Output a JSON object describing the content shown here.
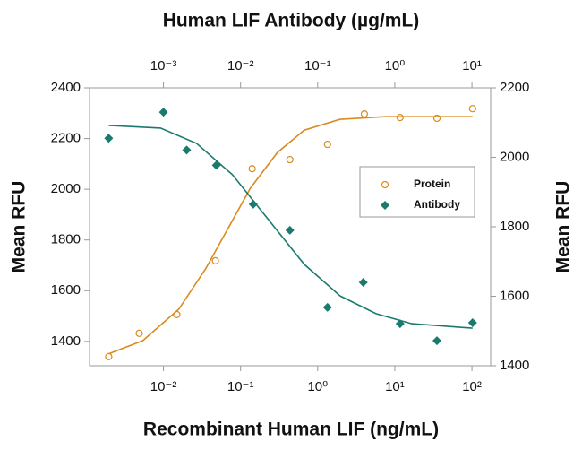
{
  "chart_data": {
    "type": "scatter",
    "title": "Human LIF Antibody (µg/mL)",
    "xlabel": "Recombinant Human LIF (ng/mL)",
    "ylabel": "Mean RFU",
    "y2label": "Mean RFU",
    "xscale": "log",
    "xlim": [
      0.0011,
      175
    ],
    "x2lim": [
      0.00011,
      17.5
    ],
    "ylim": [
      1304,
      2400
    ],
    "y2lim": [
      1400,
      2200
    ],
    "xticks": [
      {
        "value": 0.01,
        "label": "10⁻²"
      },
      {
        "value": 0.1,
        "label": "10⁻¹"
      },
      {
        "value": 1,
        "label": "10⁰"
      },
      {
        "value": 10,
        "label": "10¹"
      },
      {
        "value": 100,
        "label": "10²"
      }
    ],
    "x2ticks": [
      {
        "value": 0.001,
        "label": "10⁻³"
      },
      {
        "value": 0.01,
        "label": "10⁻²"
      },
      {
        "value": 0.1,
        "label": "10⁻¹"
      },
      {
        "value": 1,
        "label": "10⁰"
      },
      {
        "value": 10,
        "label": "10¹"
      }
    ],
    "yticks": [
      1400,
      1600,
      1800,
      2000,
      2200,
      2400
    ],
    "y2ticks": [
      1400,
      1600,
      1800,
      2000,
      2200
    ],
    "legend": "right",
    "series": [
      {
        "name": "Protein",
        "color": "#d98b1e",
        "marker": "circle",
        "axis": "y",
        "xaxis": "x",
        "x": [
          0.00195,
          0.00485,
          0.0149,
          0.0472,
          0.1415,
          0.436,
          1.34,
          4.03,
          11.7,
          35.2,
          102
        ],
        "values": [
          1340,
          1432,
          1506,
          1718,
          2081,
          2117,
          2177,
          2297,
          2283,
          2280,
          2318
        ]
      },
      {
        "name": "Antibody",
        "color": "#1a7a6e",
        "marker": "diamond",
        "axis": "y2",
        "xaxis": "x2",
        "x": [
          0.000195,
          0.001,
          0.002,
          0.00485,
          0.0146,
          0.0436,
          0.134,
          0.39,
          1.17,
          3.52,
          10.2
        ],
        "values": [
          2055,
          2130,
          2021,
          1977,
          1865,
          1790,
          1568,
          1640,
          1521,
          1472,
          1524
        ]
      }
    ],
    "curves": [
      {
        "color": "#d98b1e",
        "axis": "y",
        "xaxis": "x",
        "x": [
          0.00195,
          0.0054,
          0.0158,
          0.0352,
          0.0687,
          0.134,
          0.3,
          0.67,
          1.95,
          7.45,
          102
        ],
        "values": [
          1351,
          1403,
          1527,
          1686,
          1845,
          2004,
          2145,
          2233,
          2276,
          2286,
          2286
        ]
      },
      {
        "color": "#1a7a6e",
        "axis": "y2",
        "xaxis": "x2",
        "x": [
          0.000195,
          0.00092,
          0.00269,
          0.00785,
          0.0229,
          0.067,
          0.195,
          0.57,
          1.66,
          10.2
        ],
        "values": [
          2092,
          2084,
          2040,
          1950,
          1821,
          1692,
          1601,
          1550,
          1521,
          1508
        ]
      }
    ]
  }
}
